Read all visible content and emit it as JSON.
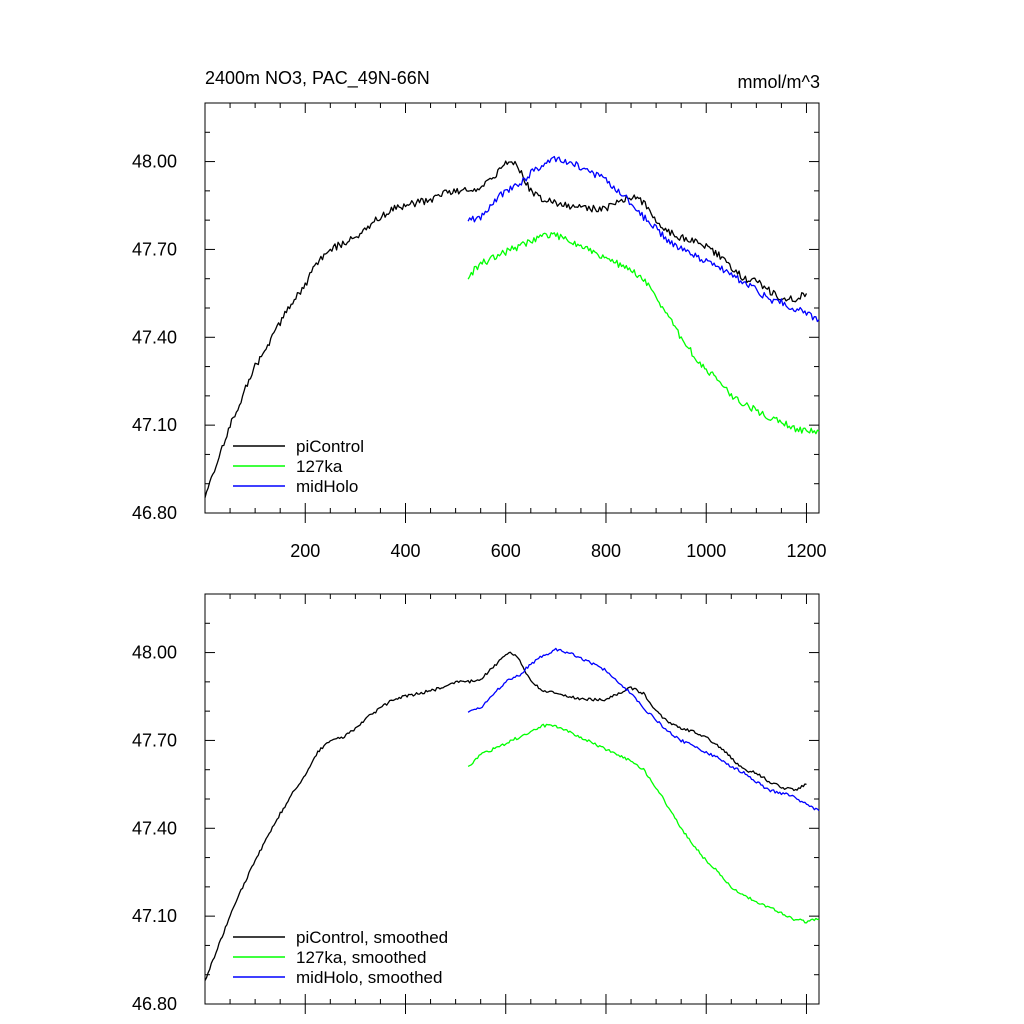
{
  "figure": {
    "title_left": "2400m NO3, PAC_49N-66N",
    "title_right": "mmol/m^3"
  },
  "chart_data": [
    {
      "type": "line",
      "title": "2400m NO3, PAC_49N-66N",
      "units": "mmol/m^3",
      "xlim": [
        0,
        1225
      ],
      "ylim": [
        46.8,
        48.2
      ],
      "x_ticks": [
        200,
        400,
        600,
        800,
        1000,
        1200
      ],
      "x_tick_labels": [
        "200",
        "400",
        "600",
        "800",
        "1000",
        "1200"
      ],
      "y_ticks": [
        46.8,
        47.1,
        47.4,
        47.7,
        48.0
      ],
      "y_tick_labels": [
        "46.80",
        "47.10",
        "47.40",
        "47.70",
        "48.00"
      ],
      "legend_position": "bottom-left",
      "series": [
        {
          "name": "piControl",
          "color": "#000000",
          "x": [
            0,
            25,
            50,
            75,
            100,
            125,
            150,
            175,
            200,
            225,
            250,
            275,
            300,
            325,
            350,
            375,
            400,
            425,
            450,
            475,
            500,
            525,
            550,
            575,
            600,
            612,
            625,
            650,
            675,
            700,
            725,
            750,
            775,
            800,
            825,
            850,
            875,
            900,
            925,
            950,
            975,
            1000,
            1025,
            1050,
            1075,
            1100,
            1125,
            1150,
            1175,
            1200
          ],
          "y": [
            46.86,
            46.98,
            47.1,
            47.2,
            47.3,
            47.37,
            47.45,
            47.52,
            47.58,
            47.66,
            47.7,
            47.72,
            47.74,
            47.78,
            47.81,
            47.84,
            47.85,
            47.86,
            47.87,
            47.89,
            47.9,
            47.9,
            47.91,
            47.95,
            47.99,
            48.0,
            47.98,
            47.9,
            47.87,
            47.86,
            47.85,
            47.84,
            47.84,
            47.84,
            47.86,
            47.88,
            47.86,
            47.8,
            47.76,
            47.74,
            47.73,
            47.71,
            47.68,
            47.64,
            47.6,
            47.59,
            47.56,
            47.53,
            47.53,
            47.55
          ]
        },
        {
          "name": "127ka",
          "color": "#00ff00",
          "x": [
            525,
            550,
            575,
            600,
            625,
            650,
            675,
            700,
            725,
            750,
            775,
            800,
            825,
            850,
            875,
            900,
            925,
            950,
            975,
            1000,
            1025,
            1050,
            1075,
            1100,
            1125,
            1150,
            1175,
            1200,
            1225
          ],
          "y": [
            47.61,
            47.65,
            47.67,
            47.69,
            47.71,
            47.73,
            47.75,
            47.75,
            47.73,
            47.71,
            47.69,
            47.67,
            47.65,
            47.63,
            47.6,
            47.54,
            47.47,
            47.4,
            47.34,
            47.29,
            47.25,
            47.2,
            47.17,
            47.15,
            47.13,
            47.11,
            47.09,
            47.08,
            47.08
          ]
        },
        {
          "name": "midHolo",
          "color": "#0000ff",
          "x": [
            525,
            550,
            575,
            600,
            625,
            650,
            675,
            700,
            725,
            750,
            775,
            800,
            825,
            850,
            875,
            900,
            925,
            950,
            975,
            1000,
            1025,
            1050,
            1075,
            1100,
            1125,
            1150,
            1175,
            1200,
            1225
          ],
          "y": [
            47.8,
            47.81,
            47.86,
            47.9,
            47.92,
            47.96,
            47.99,
            48.01,
            48.0,
            47.98,
            47.96,
            47.94,
            47.9,
            47.86,
            47.81,
            47.77,
            47.73,
            47.7,
            47.68,
            47.66,
            47.64,
            47.61,
            47.59,
            47.56,
            47.53,
            47.52,
            47.5,
            47.48,
            47.46
          ]
        }
      ]
    },
    {
      "type": "line",
      "xlim": [
        0,
        1225
      ],
      "ylim": [
        46.8,
        48.2
      ],
      "x_ticks": [
        200,
        400,
        600,
        800,
        1000,
        1200
      ],
      "y_ticks": [
        46.8,
        47.1,
        47.4,
        47.7,
        48.0
      ],
      "y_tick_labels": [
        "46.80",
        "47.10",
        "47.40",
        "47.70",
        "48.00"
      ],
      "legend_position": "bottom-left",
      "series": [
        {
          "name": "piControl, smoothed",
          "color": "#000000",
          "x": [
            0,
            25,
            50,
            75,
            100,
            125,
            150,
            175,
            200,
            225,
            250,
            275,
            300,
            325,
            350,
            375,
            400,
            425,
            450,
            475,
            500,
            525,
            550,
            575,
            600,
            612,
            625,
            650,
            675,
            700,
            725,
            750,
            775,
            800,
            825,
            850,
            875,
            900,
            925,
            950,
            975,
            1000,
            1025,
            1050,
            1075,
            1100,
            1125,
            1150,
            1175,
            1200
          ],
          "y": [
            46.88,
            46.99,
            47.1,
            47.2,
            47.29,
            47.37,
            47.45,
            47.52,
            47.58,
            47.66,
            47.7,
            47.71,
            47.74,
            47.78,
            47.81,
            47.84,
            47.85,
            47.86,
            47.87,
            47.88,
            47.9,
            47.9,
            47.91,
            47.95,
            47.99,
            48.0,
            47.98,
            47.9,
            47.87,
            47.86,
            47.85,
            47.84,
            47.84,
            47.84,
            47.86,
            47.88,
            47.86,
            47.8,
            47.76,
            47.74,
            47.73,
            47.71,
            47.68,
            47.64,
            47.6,
            47.59,
            47.56,
            47.54,
            47.53,
            47.55
          ]
        },
        {
          "name": "127ka, smoothed",
          "color": "#00ff00",
          "x": [
            525,
            550,
            575,
            600,
            625,
            650,
            675,
            700,
            725,
            750,
            775,
            800,
            825,
            850,
            875,
            900,
            925,
            950,
            975,
            1000,
            1025,
            1050,
            1075,
            1100,
            1125,
            1150,
            1175,
            1200,
            1225
          ],
          "y": [
            47.61,
            47.65,
            47.67,
            47.69,
            47.71,
            47.73,
            47.75,
            47.75,
            47.73,
            47.71,
            47.69,
            47.67,
            47.65,
            47.63,
            47.6,
            47.54,
            47.47,
            47.4,
            47.34,
            47.29,
            47.25,
            47.2,
            47.17,
            47.15,
            47.13,
            47.11,
            47.09,
            47.08,
            47.09
          ]
        },
        {
          "name": "midHolo, smoothed",
          "color": "#0000ff",
          "x": [
            525,
            550,
            575,
            600,
            625,
            650,
            675,
            700,
            725,
            750,
            775,
            800,
            825,
            850,
            875,
            900,
            925,
            950,
            975,
            1000,
            1025,
            1050,
            1075,
            1100,
            1125,
            1150,
            1175,
            1200,
            1225
          ],
          "y": [
            47.8,
            47.81,
            47.86,
            47.9,
            47.92,
            47.96,
            47.99,
            48.01,
            48.0,
            47.98,
            47.96,
            47.94,
            47.9,
            47.86,
            47.81,
            47.77,
            47.73,
            47.7,
            47.68,
            47.66,
            47.64,
            47.61,
            47.59,
            47.56,
            47.53,
            47.52,
            47.51,
            47.48,
            47.46
          ]
        }
      ]
    }
  ]
}
